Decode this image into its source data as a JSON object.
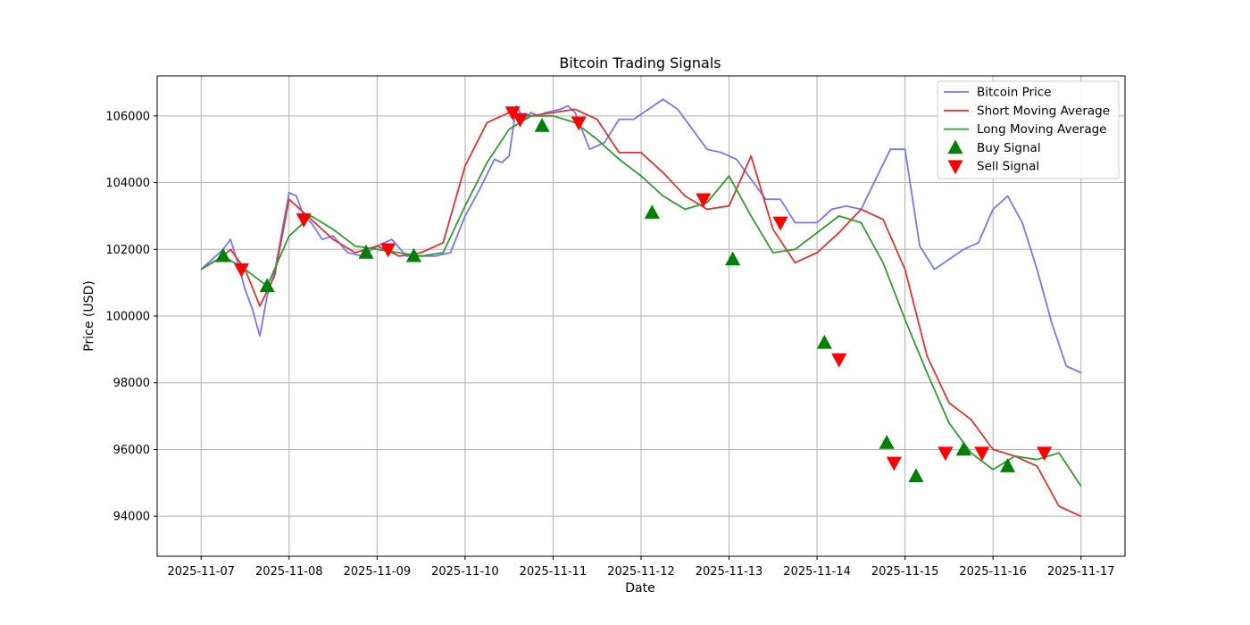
{
  "chart_data": {
    "type": "line",
    "title": "Bitcoin Trading Signals",
    "xlabel": "Date",
    "ylabel": "Price (USD)",
    "x_range": [
      "2025-11-06T12:00",
      "2025-11-17T12:00"
    ],
    "ylim": [
      92800,
      107200
    ],
    "x_ticks": [
      "2025-11-07",
      "2025-11-08",
      "2025-11-09",
      "2025-11-10",
      "2025-11-11",
      "2025-11-12",
      "2025-11-13",
      "2025-11-14",
      "2025-11-15",
      "2025-11-16",
      "2025-11-17"
    ],
    "y_ticks": [
      94000,
      96000,
      98000,
      100000,
      102000,
      104000,
      106000
    ],
    "grid": true,
    "legend_position": "upper right",
    "colors": {
      "price": "#7777ee",
      "short_ma": "#dd3333",
      "long_ma": "#339933",
      "buy": "#008000",
      "sell": "#ff0000"
    },
    "series": [
      {
        "name": "Bitcoin Price",
        "x": [
          "2025-11-07T00:00",
          "2025-11-07T04:00",
          "2025-11-07T06:00",
          "2025-11-07T08:00",
          "2025-11-07T10:00",
          "2025-11-07T12:00",
          "2025-11-07T14:00",
          "2025-11-07T16:00",
          "2025-11-07T18:00",
          "2025-11-07T20:00",
          "2025-11-08T00:00",
          "2025-11-08T02:00",
          "2025-11-08T04:00",
          "2025-11-08T06:00",
          "2025-11-08T09:00",
          "2025-11-08T12:00",
          "2025-11-08T16:00",
          "2025-11-08T20:00",
          "2025-11-09T00:00",
          "2025-11-09T04:00",
          "2025-11-09T08:00",
          "2025-11-09T12:00",
          "2025-11-09T16:00",
          "2025-11-09T20:00",
          "2025-11-10T00:00",
          "2025-11-10T04:00",
          "2025-11-10T08:00",
          "2025-11-10T10:00",
          "2025-11-10T12:00",
          "2025-11-10T14:00",
          "2025-11-10T16:00",
          "2025-11-10T18:00",
          "2025-11-10T20:00",
          "2025-11-10T22:00",
          "2025-11-11T02:00",
          "2025-11-11T04:00",
          "2025-11-11T06:00",
          "2025-11-11T10:00",
          "2025-11-11T14:00",
          "2025-11-11T18:00",
          "2025-11-11T22:00",
          "2025-11-12T02:00",
          "2025-11-12T06:00",
          "2025-11-12T10:00",
          "2025-11-12T14:00",
          "2025-11-12T18:00",
          "2025-11-12T22:00",
          "2025-11-13T02:00",
          "2025-11-13T06:00",
          "2025-11-13T10:00",
          "2025-11-13T14:00",
          "2025-11-13T18:00",
          "2025-11-14T00:00",
          "2025-11-14T04:00",
          "2025-11-14T08:00",
          "2025-11-14T12:00",
          "2025-11-14T16:00",
          "2025-11-14T20:00",
          "2025-11-15T00:00",
          "2025-11-15T04:00",
          "2025-11-15T08:00",
          "2025-11-15T12:00",
          "2025-11-15T16:00",
          "2025-11-15T20:00",
          "2025-11-16T00:00",
          "2025-11-16T04:00",
          "2025-11-16T08:00",
          "2025-11-16T12:00",
          "2025-11-16T16:00",
          "2025-11-16T20:00",
          "2025-11-17T00:00"
        ],
        "y": [
          101400,
          101800,
          102000,
          102300,
          101600,
          100800,
          100200,
          99400,
          100600,
          101300,
          103700,
          103600,
          103000,
          102800,
          102300,
          102400,
          101900,
          101800,
          102100,
          102300,
          101800,
          101800,
          101800,
          101900,
          103000,
          103800,
          104700,
          104600,
          104800,
          106300,
          105900,
          106100,
          106000,
          106100,
          106200,
          106300,
          106100,
          105000,
          105200,
          105900,
          105900,
          106200,
          106500,
          106200,
          105600,
          105000,
          104900,
          104700,
          104100,
          103500,
          103500,
          102800,
          102800,
          103200,
          103300,
          103200,
          104100,
          105000,
          105000,
          102100,
          101400,
          101700,
          102000,
          102200,
          103200,
          103600,
          102800,
          101400,
          99800,
          98500,
          98300
        ]
      },
      {
        "name": "Short Moving Average",
        "x": [
          "2025-11-07T00:00",
          "2025-11-07T06:00",
          "2025-11-07T08:00",
          "2025-11-07T12:00",
          "2025-11-07T16:00",
          "2025-11-07T20:00",
          "2025-11-08T00:00",
          "2025-11-08T06:00",
          "2025-11-08T12:00",
          "2025-11-08T18:00",
          "2025-11-09T00:00",
          "2025-11-09T06:00",
          "2025-11-09T12:00",
          "2025-11-09T18:00",
          "2025-11-10T00:00",
          "2025-11-10T06:00",
          "2025-11-10T12:00",
          "2025-11-10T18:00",
          "2025-11-11T00:00",
          "2025-11-11T06:00",
          "2025-11-11T12:00",
          "2025-11-11T18:00",
          "2025-11-12T00:00",
          "2025-11-12T06:00",
          "2025-11-12T12:00",
          "2025-11-12T18:00",
          "2025-11-13T00:00",
          "2025-11-13T06:00",
          "2025-11-13T12:00",
          "2025-11-13T18:00",
          "2025-11-14T00:00",
          "2025-11-14T06:00",
          "2025-11-14T12:00",
          "2025-11-14T18:00",
          "2025-11-15T00:00",
          "2025-11-15T06:00",
          "2025-11-15T12:00",
          "2025-11-15T18:00",
          "2025-11-16T00:00",
          "2025-11-16T06:00",
          "2025-11-16T12:00",
          "2025-11-16T18:00",
          "2025-11-17T00:00"
        ],
        "y": [
          101400,
          101800,
          102000,
          101400,
          100300,
          101200,
          103500,
          102900,
          102300,
          101900,
          102100,
          101800,
          101900,
          102200,
          104500,
          105800,
          106100,
          106000,
          106100,
          106200,
          105900,
          104900,
          104900,
          104300,
          103600,
          103200,
          103300,
          104800,
          102600,
          101600,
          101900,
          102500,
          103200,
          102900,
          101400,
          98800,
          97400,
          96900,
          96000,
          95800,
          95500,
          94300,
          94000
        ]
      },
      {
        "name": "Long Moving Average",
        "x": [
          "2025-11-07T00:00",
          "2025-11-07T06:00",
          "2025-11-07T12:00",
          "2025-11-07T18:00",
          "2025-11-08T00:00",
          "2025-11-08T06:00",
          "2025-11-08T12:00",
          "2025-11-08T18:00",
          "2025-11-09T00:00",
          "2025-11-09T06:00",
          "2025-11-09T12:00",
          "2025-11-09T18:00",
          "2025-11-10T00:00",
          "2025-11-10T06:00",
          "2025-11-10T12:00",
          "2025-11-10T18:00",
          "2025-11-11T00:00",
          "2025-11-11T06:00",
          "2025-11-11T12:00",
          "2025-11-11T18:00",
          "2025-11-12T00:00",
          "2025-11-12T06:00",
          "2025-11-12T12:00",
          "2025-11-12T18:00",
          "2025-11-13T00:00",
          "2025-11-13T06:00",
          "2025-11-13T12:00",
          "2025-11-13T18:00",
          "2025-11-14T00:00",
          "2025-11-14T06:00",
          "2025-11-14T12:00",
          "2025-11-14T18:00",
          "2025-11-15T00:00",
          "2025-11-15T06:00",
          "2025-11-15T12:00",
          "2025-11-15T18:00",
          "2025-11-16T00:00",
          "2025-11-16T06:00",
          "2025-11-16T12:00",
          "2025-11-16T18:00",
          "2025-11-17T00:00"
        ],
        "y": [
          101400,
          101800,
          101400,
          100900,
          102400,
          103000,
          102600,
          102100,
          102000,
          101900,
          101800,
          101900,
          103300,
          104600,
          105600,
          106000,
          106000,
          105800,
          105300,
          104700,
          104200,
          103600,
          103200,
          103400,
          104200,
          103000,
          101900,
          102000,
          102500,
          103000,
          102800,
          101600,
          99900,
          98300,
          96800,
          95900,
          95400,
          95800,
          95700,
          95900,
          94900
        ]
      },
      {
        "name": "Buy Signal",
        "x": [
          "2025-11-07T06:00",
          "2025-11-07T18:00",
          "2025-11-08T21:00",
          "2025-11-09T10:00",
          "2025-11-10T21:00",
          "2025-11-12T03:00",
          "2025-11-13T01:00",
          "2025-11-14T02:00",
          "2025-11-14T19:00",
          "2025-11-15T03:00",
          "2025-11-15T16:00",
          "2025-11-16T04:00"
        ],
        "y": [
          101800,
          100900,
          101900,
          101800,
          105700,
          103100,
          101700,
          99200,
          96200,
          95200,
          96000,
          95500
        ]
      },
      {
        "name": "Sell Signal",
        "x": [
          "2025-11-07T11:00",
          "2025-11-08T04:00",
          "2025-11-09T03:00",
          "2025-11-10T13:00",
          "2025-11-10T15:00",
          "2025-11-11T07:00",
          "2025-11-12T17:00",
          "2025-11-13T14:00",
          "2025-11-14T06:00",
          "2025-11-14T21:00",
          "2025-11-15T11:00",
          "2025-11-15T21:00",
          "2025-11-16T14:00"
        ],
        "y": [
          101400,
          102900,
          102000,
          106100,
          105900,
          105800,
          103500,
          102800,
          98700,
          95600,
          95900,
          95900,
          95900
        ]
      }
    ]
  }
}
